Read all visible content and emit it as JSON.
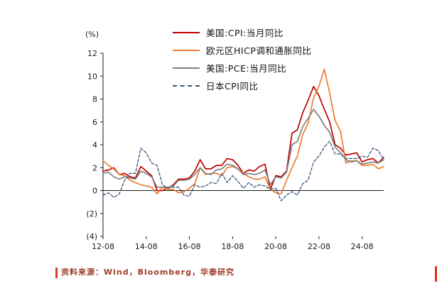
{
  "colors": {
    "footer_text": "#9E3A26",
    "accent_red": "#DB3B26",
    "axis": "#1a1a1a"
  },
  "footer": {
    "source_text": "资料来源：Wind，Bloomberg，华泰研究"
  },
  "chart_data": {
    "type": "line",
    "title": "",
    "unit_label": "(%)",
    "grid": false,
    "legend_position": "top-center",
    "ylim": [
      -4,
      12
    ],
    "y_tick_values": [
      12,
      10,
      8,
      6,
      4,
      2,
      0,
      -2,
      -4
    ],
    "y_tick_labels": [
      "12",
      "10",
      "8",
      "6",
      "4",
      "2",
      "0",
      "(2)",
      "(4)"
    ],
    "x_tick_labels": [
      "12-08",
      "14-08",
      "16-08",
      "18-08",
      "20-08",
      "22-08",
      "24-08"
    ],
    "x": [
      "12-08",
      "12-11",
      "13-02",
      "13-05",
      "13-08",
      "13-11",
      "14-02",
      "14-05",
      "14-08",
      "14-11",
      "15-02",
      "15-05",
      "15-08",
      "15-11",
      "16-02",
      "16-05",
      "16-08",
      "16-11",
      "17-02",
      "17-05",
      "17-08",
      "17-11",
      "18-02",
      "18-05",
      "18-08",
      "18-11",
      "19-02",
      "19-05",
      "19-08",
      "19-11",
      "20-02",
      "20-05",
      "20-08",
      "20-11",
      "21-02",
      "21-05",
      "21-08",
      "21-11",
      "22-02",
      "22-05",
      "22-08",
      "22-11",
      "23-02",
      "23-05",
      "23-08",
      "23-11",
      "24-02",
      "24-05",
      "24-08",
      "24-11",
      "25-02",
      "25-05",
      "25-08"
    ],
    "series": [
      {
        "name": "美国:CPI:当月同比",
        "color": "#C00000",
        "line_style": "solid",
        "values": [
          1.7,
          1.8,
          2.0,
          1.4,
          1.5,
          1.2,
          1.1,
          2.1,
          1.7,
          1.3,
          0.0,
          0.0,
          0.2,
          0.5,
          1.0,
          1.0,
          1.1,
          1.7,
          2.7,
          1.9,
          1.9,
          2.2,
          2.2,
          2.8,
          2.7,
          2.2,
          1.5,
          1.8,
          1.7,
          2.1,
          2.3,
          0.1,
          1.3,
          1.2,
          1.7,
          5.0,
          5.3,
          6.8,
          7.9,
          9.1,
          8.3,
          7.1,
          6.0,
          4.0,
          3.7,
          3.1,
          3.2,
          3.3,
          2.5,
          2.7,
          2.8,
          2.4,
          2.9
        ]
      },
      {
        "name": "欧元区HICP调和通胀同比",
        "color": "#ED7D31",
        "line_style": "solid",
        "values": [
          2.6,
          2.2,
          1.9,
          1.4,
          1.3,
          0.9,
          0.7,
          0.5,
          0.4,
          0.3,
          -0.3,
          0.3,
          0.1,
          0.1,
          -0.2,
          -0.1,
          0.2,
          0.6,
          2.0,
          1.4,
          1.5,
          1.5,
          1.3,
          2.0,
          2.1,
          1.9,
          1.5,
          1.2,
          1.0,
          1.0,
          1.2,
          0.1,
          -0.2,
          -0.3,
          0.9,
          2.0,
          3.0,
          4.9,
          5.9,
          8.1,
          9.1,
          10.6,
          8.5,
          6.1,
          5.2,
          2.4,
          2.6,
          2.6,
          2.2,
          2.2,
          2.3,
          1.9,
          2.1
        ]
      },
      {
        "name": "美国:PCE:当月同比",
        "color": "#7F7F7F",
        "line_style": "solid",
        "values": [
          1.5,
          1.6,
          1.2,
          1.0,
          1.2,
          1.1,
          1.0,
          1.7,
          1.5,
          1.2,
          0.3,
          0.3,
          0.3,
          0.4,
          0.9,
          0.9,
          1.0,
          1.4,
          2.0,
          1.5,
          1.4,
          1.8,
          1.9,
          2.3,
          2.2,
          1.9,
          1.4,
          1.5,
          1.4,
          1.5,
          1.8,
          0.5,
          1.2,
          1.1,
          1.6,
          4.0,
          4.3,
          5.6,
          6.3,
          7.1,
          6.5,
          5.7,
          5.1,
          3.8,
          3.3,
          2.7,
          2.5,
          2.6,
          2.3,
          2.4,
          2.5,
          2.4,
          2.7
        ]
      },
      {
        "name": "日本CPI同比",
        "color": "#3A557E",
        "line_style": "dashed",
        "values": [
          -0.4,
          -0.2,
          -0.6,
          -0.3,
          0.9,
          1.5,
          1.5,
          3.7,
          3.3,
          2.4,
          2.2,
          0.5,
          0.2,
          0.3,
          0.3,
          -0.4,
          -0.5,
          0.5,
          0.3,
          0.4,
          0.7,
          0.6,
          1.5,
          0.7,
          1.3,
          0.8,
          0.2,
          0.7,
          0.3,
          0.5,
          0.4,
          0.1,
          0.2,
          -0.9,
          -0.4,
          -0.1,
          -0.4,
          0.6,
          0.9,
          2.5,
          3.0,
          3.8,
          4.3,
          3.2,
          3.2,
          2.8,
          2.8,
          2.8,
          3.0,
          2.9,
          3.7,
          3.5,
          2.7
        ]
      }
    ]
  }
}
